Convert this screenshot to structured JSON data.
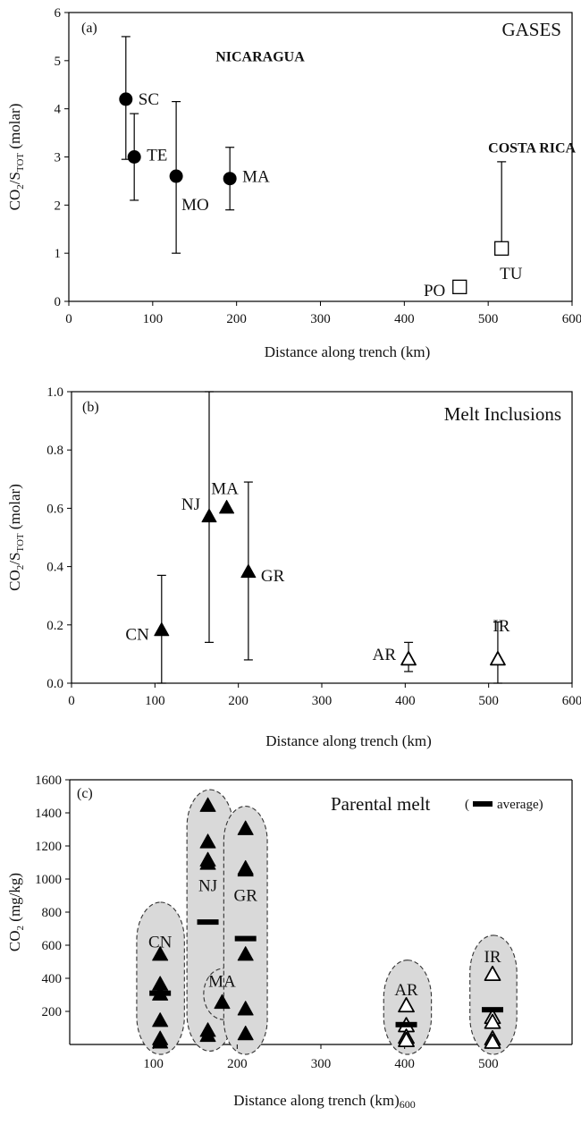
{
  "chart_data": [
    {
      "type": "scatter",
      "panel": "(a)",
      "title": "GASES",
      "xlabel": "Distance along trench (km)",
      "ylabel": {
        "main": "CO",
        "sub1": "2",
        "mid": "/S",
        "sub2": "TOT",
        "tail": " (molar)"
      },
      "xlim": [
        0,
        600
      ],
      "ylim": [
        0,
        6
      ],
      "xticks": [
        "0",
        "100",
        "200",
        "300",
        "400",
        "500",
        "600"
      ],
      "yticks": [
        "0",
        "1",
        "2",
        "3",
        "4",
        "5",
        "6"
      ],
      "grid": false,
      "annotations": [
        {
          "text": "NICARAGUA",
          "x": 175,
          "y": 5.1
        },
        {
          "text": "COSTA RICA",
          "x": 500,
          "y": 3.2
        }
      ],
      "points": [
        {
          "label": "SC",
          "x": 68,
          "y": 4.2,
          "err_low": 2.95,
          "err_high": 5.5,
          "marker": "filled-circle"
        },
        {
          "label": "TE",
          "x": 78,
          "y": 3.0,
          "err_low": 2.1,
          "err_high": 3.9,
          "marker": "filled-circle"
        },
        {
          "label": "MO",
          "x": 128,
          "y": 2.6,
          "err_low": 1.0,
          "err_high": 4.15,
          "marker": "filled-circle"
        },
        {
          "label": "MA",
          "x": 192,
          "y": 2.55,
          "err_low": 1.9,
          "err_high": 3.2,
          "marker": "filled-circle"
        },
        {
          "label": "PO",
          "x": 466,
          "y": 0.3,
          "marker": "open-square"
        },
        {
          "label": "TU",
          "x": 516,
          "y": 1.1,
          "err_low": 1.1,
          "err_high": 2.9,
          "marker": "open-square"
        }
      ]
    },
    {
      "type": "scatter",
      "panel": "(b)",
      "title": "Melt Inclusions",
      "xlabel": "Distance along trench (km)",
      "ylabel": {
        "main": "CO",
        "sub1": "2",
        "mid": "/S",
        "sub2": "TOT",
        "tail": " (molar)"
      },
      "xlim": [
        0,
        600
      ],
      "ylim": [
        0,
        1.0
      ],
      "xticks": [
        "0",
        "100",
        "200",
        "300",
        "400",
        "500",
        "600"
      ],
      "yticks": [
        "0.0",
        "0.2",
        "0.4",
        "0.6",
        "0.8",
        "1.0"
      ],
      "grid": false,
      "points": [
        {
          "label": "CN",
          "x": 108,
          "y": 0.18,
          "err_low": 0.0,
          "err_high": 0.37,
          "marker": "filled-triangle"
        },
        {
          "label": "NJ",
          "x": 165,
          "y": 0.57,
          "err_low": 0.14,
          "err_high": 1.0,
          "marker": "filled-triangle"
        },
        {
          "label": "MA",
          "x": 186,
          "y": 0.6,
          "marker": "filled-triangle"
        },
        {
          "label": "GR",
          "x": 212,
          "y": 0.38,
          "err_low": 0.08,
          "err_high": 0.69,
          "marker": "filled-triangle"
        },
        {
          "label": "AR",
          "x": 404,
          "y": 0.08,
          "err_low": 0.04,
          "err_high": 0.14,
          "marker": "open-triangle"
        },
        {
          "label": "IR",
          "x": 511,
          "y": 0.08,
          "err_low": 0.0,
          "err_high": 0.21,
          "marker": "open-triangle"
        }
      ]
    },
    {
      "type": "scatter",
      "panel": "(c)",
      "title": "Parental melt",
      "legend": {
        "text": "average",
        "position": "top-right"
      },
      "xlabel": "Distance along trench (km)",
      "xlabel_suffix": "600",
      "ylabel": {
        "main": "CO",
        "sub1": "2",
        "tail": " (mg/kg)"
      },
      "xlim": [
        0,
        600
      ],
      "ylim": [
        0,
        1600
      ],
      "xticks": [
        "100",
        "200",
        "300",
        "400",
        "500"
      ],
      "yticks": [
        "200",
        "400",
        "600",
        "800",
        "1000",
        "1200",
        "1400",
        "1600"
      ],
      "grid": false,
      "groups": [
        {
          "label": "CN",
          "x": 108,
          "label_y": 620,
          "fill": "filled",
          "values": [
            540,
            360,
            300,
            140,
            30,
            10
          ],
          "average": 310,
          "region": {
            "x_min": 80,
            "x_max": 137,
            "y_min": -60,
            "y_max": 860
          }
        },
        {
          "label": "NJ",
          "x": 165,
          "label_y": 960,
          "fill": "filled",
          "values": [
            1440,
            1220,
            1110,
            1090,
            80,
            50
          ],
          "average": 740,
          "region": {
            "x_min": 140,
            "x_max": 195,
            "y_min": -40,
            "y_max": 1540
          }
        },
        {
          "label": "MA",
          "x": 182,
          "label_y": 380,
          "fill": "filled",
          "values": [
            250
          ],
          "region": {
            "x_min": 160,
            "x_max": 208,
            "y_min": 150,
            "y_max": 460
          }
        },
        {
          "label": "GR",
          "x": 210,
          "label_y": 900,
          "fill": "filled",
          "values": [
            1300,
            1060,
            1050,
            540,
            210,
            60
          ],
          "average": 640,
          "region": {
            "x_min": 184,
            "x_max": 236,
            "y_min": -60,
            "y_max": 1440
          }
        },
        {
          "label": "AR",
          "x": 402,
          "label_y": 330,
          "fill": "open",
          "values": [
            230,
            110,
            40,
            20
          ],
          "average": 120,
          "region": {
            "x_min": 375,
            "x_max": 432,
            "y_min": -60,
            "y_max": 510
          }
        },
        {
          "label": "IR",
          "x": 505,
          "label_y": 530,
          "fill": "open",
          "values": [
            420,
            160,
            130,
            30,
            10
          ],
          "average": 210,
          "region": {
            "x_min": 478,
            "x_max": 534,
            "y_min": -60,
            "y_max": 660
          }
        }
      ]
    }
  ]
}
